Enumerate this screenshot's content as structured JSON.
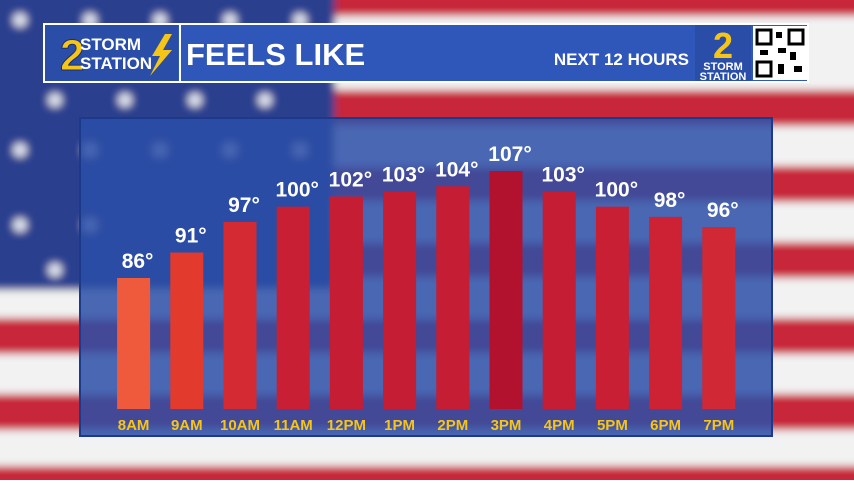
{
  "header": {
    "logo_number": "2",
    "logo_line1": "STORM",
    "logo_line2": "STATION",
    "subheading": "NEXT 12 HOURS",
    "right_logo_number": "2",
    "right_logo_line1": "STORM",
    "right_logo_line2": "STATION"
  },
  "chart_data": {
    "type": "bar",
    "title": "FEELS LIKE",
    "categories": [
      "8AM",
      "9AM",
      "10AM",
      "11AM",
      "12PM",
      "1PM",
      "2PM",
      "3PM",
      "4PM",
      "5PM",
      "6PM",
      "7PM"
    ],
    "values": [
      86,
      91,
      97,
      100,
      102,
      103,
      104,
      107,
      103,
      100,
      98,
      96
    ],
    "value_labels": [
      "86°",
      "91°",
      "97°",
      "100°",
      "102°",
      "103°",
      "104°",
      "107°",
      "103°",
      "100°",
      "98°",
      "96°"
    ],
    "colors": [
      "#f05a3c",
      "#e23a2d",
      "#d32a33",
      "#c81f35",
      "#c41d34",
      "#c41d34",
      "#c41d34",
      "#b3122e",
      "#c41d34",
      "#c81f35",
      "#cc2234",
      "#d02834"
    ]
  }
}
